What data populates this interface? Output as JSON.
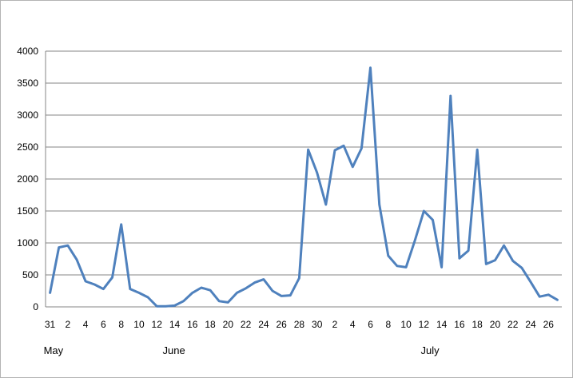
{
  "chart_data": {
    "type": "line",
    "title": "",
    "xlabel": "",
    "ylabel": "",
    "ylim": [
      0,
      4000
    ],
    "y_ticks": [
      0,
      500,
      1000,
      1500,
      2000,
      2500,
      3000,
      3500,
      4000
    ],
    "grid": "horizontal",
    "legend": "none",
    "x_tick_labels": [
      "31",
      "2",
      "4",
      "6",
      "8",
      "10",
      "12",
      "14",
      "16",
      "18",
      "20",
      "22",
      "24",
      "26",
      "28",
      "30",
      "2",
      "4",
      "6",
      "8",
      "10",
      "12",
      "14",
      "16",
      "18",
      "20",
      "22",
      "24",
      "26"
    ],
    "month_labels": [
      {
        "label": "May",
        "at": "May 31"
      },
      {
        "label": "June",
        "at": "June 14"
      },
      {
        "label": "July",
        "at": "July 13"
      }
    ],
    "series": [
      {
        "color": "#4f81bd",
        "x": [
          "May 31",
          "Jun 1",
          "Jun 2",
          "Jun 3",
          "Jun 4",
          "Jun 5",
          "Jun 6",
          "Jun 7",
          "Jun 8",
          "Jun 9",
          "Jun 10",
          "Jun 11",
          "Jun 12",
          "Jun 13",
          "Jun 14",
          "Jun 15",
          "Jun 16",
          "Jun 17",
          "Jun 18",
          "Jun 19",
          "Jun 20",
          "Jun 21",
          "Jun 22",
          "Jun 23",
          "Jun 24",
          "Jun 25",
          "Jun 26",
          "Jun 27",
          "Jun 28",
          "Jun 29",
          "Jun 30",
          "Jul 1",
          "Jul 2",
          "Jul 3",
          "Jul 4",
          "Jul 5",
          "Jul 6",
          "Jul 7",
          "Jul 8",
          "Jul 9",
          "Jul 10",
          "Jul 11",
          "Jul 12",
          "Jul 13",
          "Jul 14",
          "Jul 15",
          "Jul 16",
          "Jul 17",
          "Jul 18",
          "Jul 19",
          "Jul 20",
          "Jul 21",
          "Jul 22",
          "Jul 23",
          "Jul 24",
          "Jul 25",
          "Jul 26",
          "Jul 27"
        ],
        "values": [
          220,
          930,
          960,
          740,
          400,
          350,
          280,
          460,
          1290,
          280,
          220,
          150,
          10,
          10,
          20,
          90,
          220,
          300,
          260,
          90,
          70,
          220,
          290,
          380,
          430,
          250,
          170,
          180,
          450,
          2460,
          2100,
          1600,
          2450,
          2520,
          2190,
          2480,
          3740,
          1600,
          800,
          640,
          620,
          1040,
          1500,
          1360,
          620,
          3300,
          760,
          880,
          2460,
          670,
          730,
          960,
          720,
          610,
          390,
          160,
          190,
          110
        ]
      }
    ]
  }
}
